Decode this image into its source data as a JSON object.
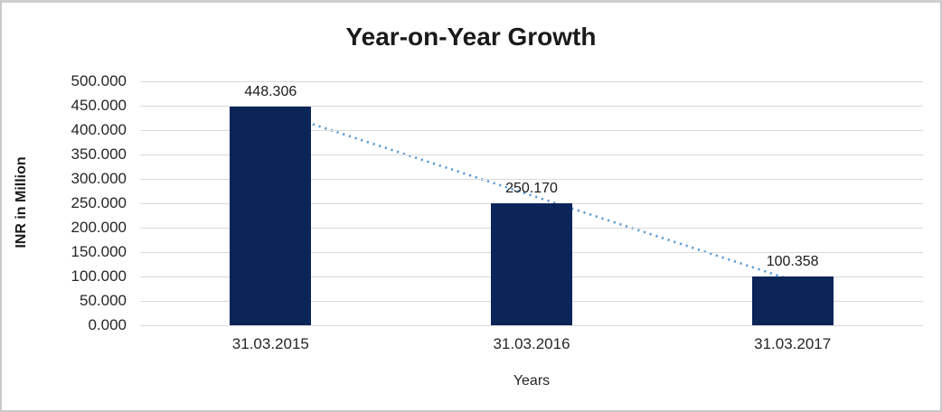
{
  "frame": {
    "background_color": "#ffffff",
    "border_color": "#c9c9c9"
  },
  "chart_data": {
    "type": "bar",
    "title": "Year-on-Year Growth",
    "xlabel": "Years",
    "ylabel": "INR in Million",
    "categories": [
      "31.03.2015",
      "31.03.2016",
      "31.03.2017"
    ],
    "values": [
      448.306,
      250.17,
      100.358
    ],
    "value_labels": [
      "448.306",
      "250.170",
      "100.358"
    ],
    "ylim": [
      0,
      500
    ],
    "y_step": 50,
    "y_tick_labels_top_to_bottom": [
      "500.000",
      "450.000",
      "400.000",
      "350.000",
      "300.000",
      "250.000",
      "200.000",
      "150.000",
      "100.000",
      "50.000",
      "0.000"
    ],
    "grid": true,
    "legend": null,
    "bar_color": "#0b2559",
    "gridline_color": "#d9d9d9",
    "trendline": {
      "style": "dotted",
      "fit": "linear",
      "color": "#5b9bd5"
    },
    "text_color": "#262626"
  }
}
